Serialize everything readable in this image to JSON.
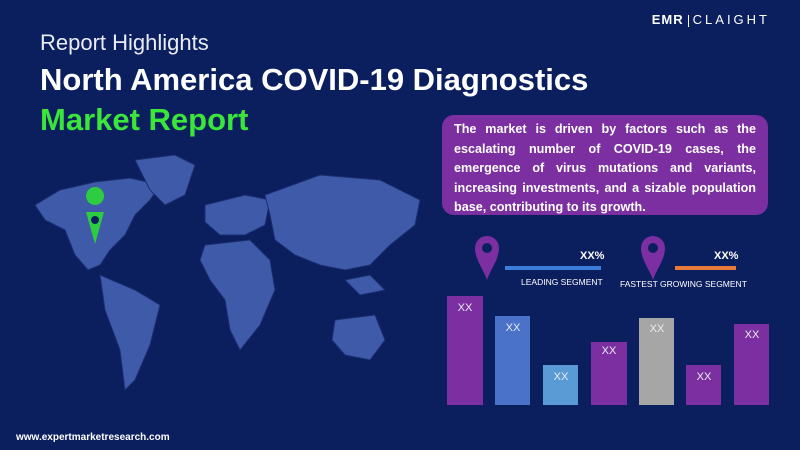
{
  "logo": {
    "left": "EMR",
    "right": "CLAIGHT"
  },
  "header": {
    "subtitle": "Report Highlights",
    "title": "North America COVID-19 Diagnostics",
    "highlight": "Market Report"
  },
  "summary": "The market is driven by factors such as the escalating number of COVID-19 cases, the emergence of virus mutations and variants, increasing investments, and a sizable population base, contributing to its growth.",
  "segments": [
    {
      "value": "XX%",
      "label": "LEADING SEGMENT"
    },
    {
      "value": "XX%",
      "label": "FASTEST GROWING SEGMENT"
    }
  ],
  "bars": [
    "XX",
    "XX",
    "XX",
    "XX",
    "XX",
    "XX",
    "XX"
  ],
  "footer": "www.expertmarketresearch.com"
}
